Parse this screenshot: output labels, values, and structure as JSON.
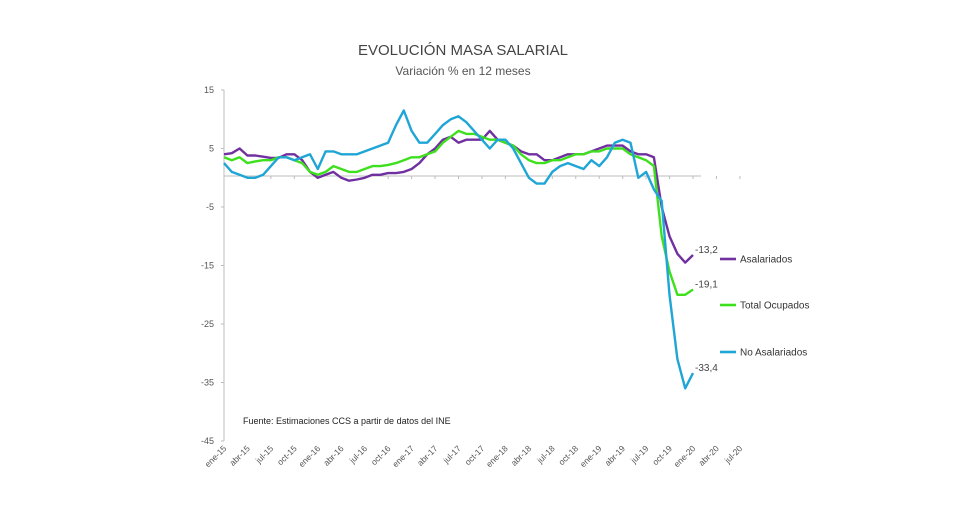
{
  "chart_data": {
    "type": "line",
    "title": "EVOLUCIÓN MASA SALARIAL",
    "subtitle": "Variación % en 12 meses",
    "source": "Fuente: Estimaciones CCS a partir de datos del INE",
    "ylim": [
      -45,
      15
    ],
    "yticks": [
      15,
      5,
      -5,
      -15,
      -25,
      -35,
      -45
    ],
    "xtick_labels": [
      "ene-15",
      "abr-15",
      "jul-15",
      "oct-15",
      "ene-16",
      "abr-16",
      "jul-16",
      "oct-16",
      "ene-17",
      "abr-17",
      "jul-17",
      "oct-17",
      "ene-18",
      "abr-18",
      "jul-18",
      "oct-18",
      "ene-19",
      "abr-19",
      "jul-19",
      "oct-19",
      "ene-20",
      "abr-20",
      "jul-20"
    ],
    "grid": false,
    "legend_position": "right",
    "series": [
      {
        "name": "Asalariados",
        "color": "#7030a0",
        "end_label": "-13,2",
        "values": [
          4,
          4.2,
          5,
          3.8,
          3.8,
          3.6,
          3.4,
          3.4,
          4,
          4,
          3,
          1,
          0,
          0.5,
          1,
          0,
          -0.5,
          -0.3,
          0,
          0.5,
          0.5,
          0.8,
          0.8,
          1,
          1.5,
          2.5,
          4,
          5,
          6.5,
          7,
          6,
          6.5,
          6.5,
          6.5,
          8,
          6.5,
          6,
          5.5,
          4.5,
          4,
          4,
          3,
          3,
          3.5,
          4,
          4,
          4,
          4.5,
          5,
          5.5,
          5.5,
          5.5,
          4.5,
          4,
          4,
          3.5,
          -5,
          -10,
          -13,
          -14.5,
          -13.2
        ]
      },
      {
        "name": "Total Ocupados",
        "color": "#3ee01e",
        "end_label": "-19,1",
        "values": [
          3.5,
          3,
          3.5,
          2.5,
          2.8,
          3,
          3,
          3.5,
          3.5,
          3,
          2.5,
          1,
          0.5,
          1,
          2,
          1.5,
          1,
          1,
          1.5,
          2,
          2,
          2.2,
          2.5,
          3,
          3.5,
          3.5,
          4,
          4.5,
          6,
          7,
          8,
          7.5,
          7.5,
          7,
          6.5,
          6.5,
          6,
          5.5,
          4,
          3,
          2.5,
          2.5,
          3,
          3,
          3.5,
          4,
          4,
          4.5,
          4.5,
          5,
          5,
          5,
          4,
          3.5,
          3,
          2,
          -10,
          -16,
          -20,
          -20,
          -19.1
        ]
      },
      {
        "name": "No Asalariados",
        "color": "#1fa5d6",
        "end_label": "-33,4",
        "values": [
          2.5,
          1,
          0.5,
          0,
          0,
          0.5,
          2,
          3.5,
          3.5,
          3,
          3.5,
          4,
          1.5,
          4.5,
          4.5,
          4,
          4,
          4,
          4.5,
          5,
          5.5,
          6,
          9,
          11.5,
          8,
          6,
          6,
          7.5,
          9,
          10,
          10.5,
          9.5,
          8,
          6.5,
          5,
          6.5,
          6.5,
          5,
          2.5,
          0,
          -1,
          -1,
          1,
          2,
          2.5,
          2,
          1.5,
          3,
          2,
          3.5,
          6,
          6.5,
          6,
          0,
          1,
          -2,
          -4,
          -20,
          -31,
          -36,
          -33.4
        ]
      }
    ]
  }
}
